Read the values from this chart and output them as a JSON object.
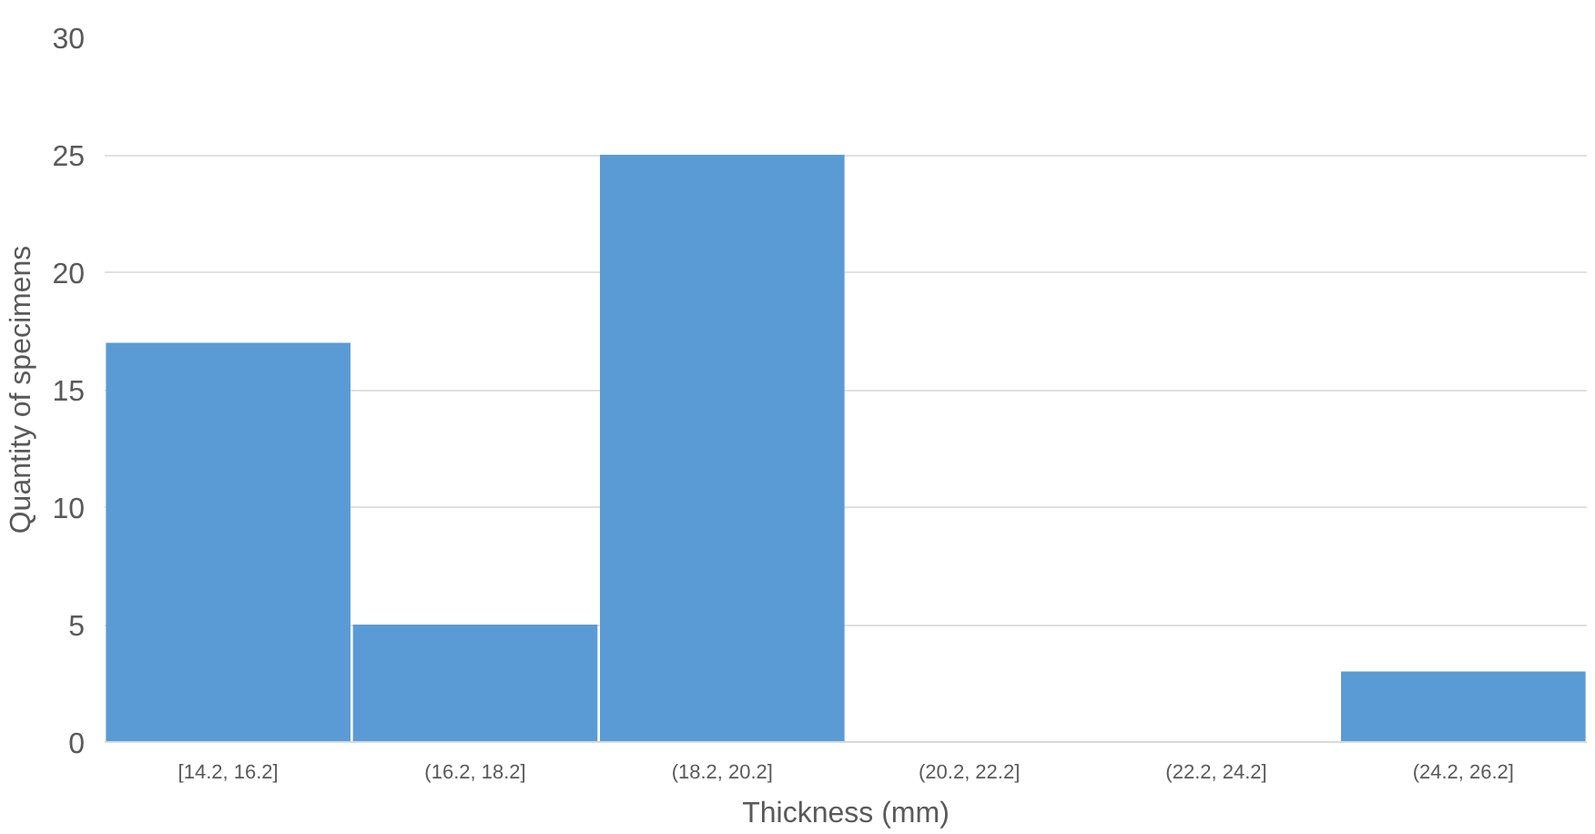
{
  "chart_data": {
    "type": "bar",
    "xlabel": "Thickness (mm)",
    "ylabel": "Quantity of specimens",
    "categories": [
      "[14.2, 16.2]",
      "(16.2, 18.2]",
      "(18.2, 20.2]",
      "(20.2, 22.2]",
      "(22.2, 24.2]",
      "(24.2, 26.2]"
    ],
    "values": [
      17,
      5,
      25,
      0,
      0,
      3
    ],
    "color": "#5b9bd5",
    "ylim": [
      0,
      30
    ],
    "yticks": [
      0,
      5,
      10,
      15,
      20,
      25,
      30
    ],
    "grid": "y"
  }
}
